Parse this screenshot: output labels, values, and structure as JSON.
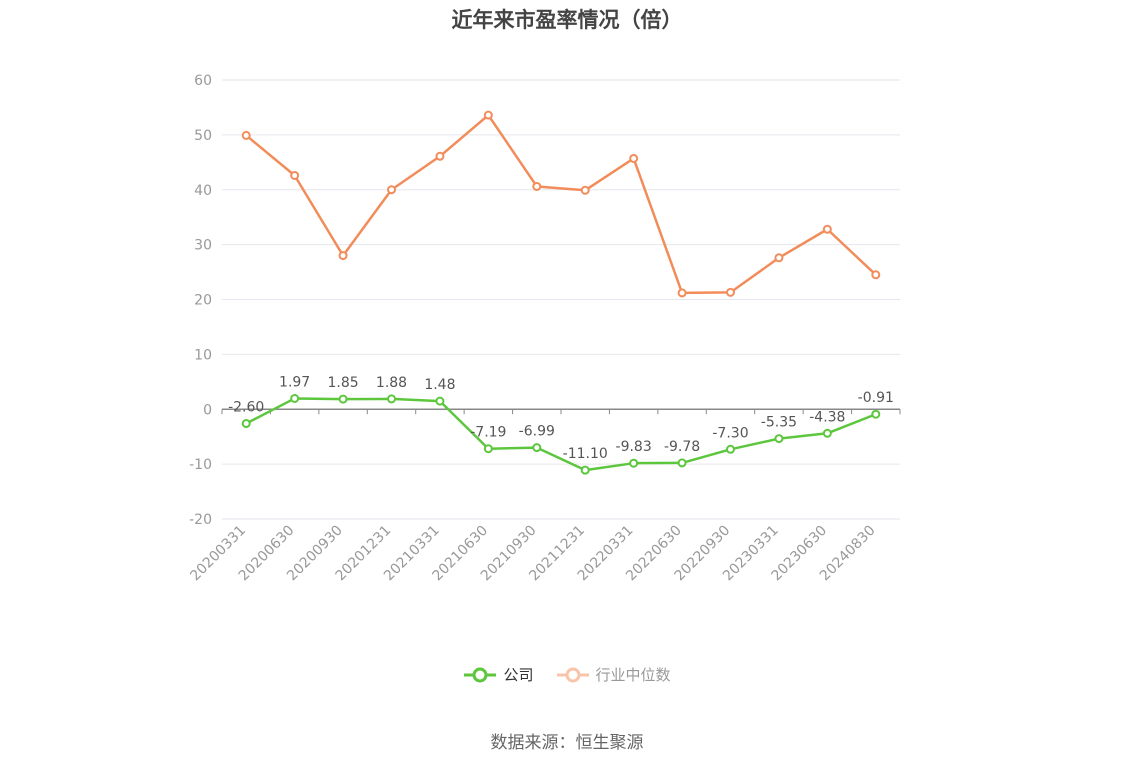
{
  "chart_data": {
    "type": "line",
    "title": "近年来市盈率情况（倍）",
    "categories": [
      "20200331",
      "20200630",
      "20200930",
      "20201231",
      "20210331",
      "20210630",
      "20210930",
      "20211231",
      "20220331",
      "20220630",
      "20220930",
      "20230331",
      "20230630",
      "20240830"
    ],
    "series": [
      {
        "name": "公司",
        "color": "#5cc73d",
        "values": [
          -2.6,
          1.97,
          1.85,
          1.88,
          1.48,
          -7.19,
          -6.99,
          -11.1,
          -9.83,
          -9.78,
          -7.3,
          -5.35,
          -4.38,
          -0.91
        ],
        "labels": [
          "-2.60",
          "1.97",
          "1.85",
          "1.88",
          "1.48",
          "-7.19",
          "-6.99",
          "-11.10",
          "-9.83",
          "-9.78",
          "-7.30",
          "-5.35",
          "-4.38",
          "-0.91"
        ]
      },
      {
        "name": "行业中位数",
        "color": "#f28c5a",
        "values": [
          49.9,
          42.6,
          28.0,
          40.0,
          46.1,
          53.6,
          40.6,
          39.9,
          45.7,
          21.2,
          21.3,
          27.6,
          32.8,
          24.5
        ]
      }
    ],
    "ylim": [
      -20,
      60
    ],
    "yticks": [
      "60",
      "50",
      "40",
      "30",
      "20",
      "10",
      "0",
      "-10",
      "-20"
    ],
    "ytick_values": [
      60,
      50,
      40,
      30,
      20,
      10,
      0,
      -10,
      -20
    ],
    "grid": true,
    "legend": "bottom-center"
  },
  "legend": {
    "company_label": "公司",
    "industry_label": "行业中位数"
  },
  "source": "数据来源：恒生聚源"
}
